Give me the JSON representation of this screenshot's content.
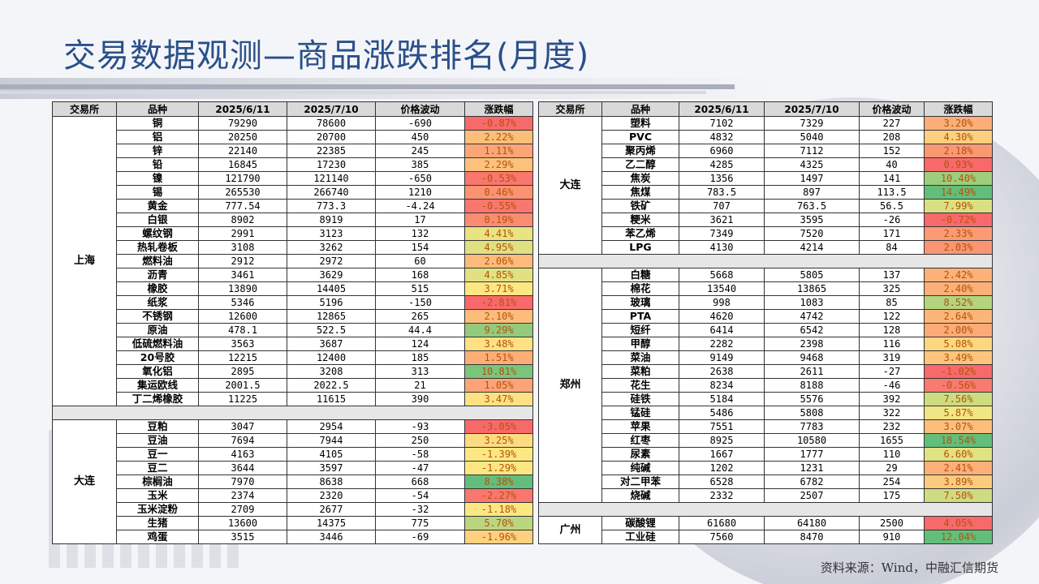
{
  "title": "交易数据观测—商品涨跌排名(月度)",
  "columns": [
    "交易所",
    "品种",
    "2025/6/11",
    "2025/7/10",
    "价格波动",
    "涨跌幅"
  ],
  "left_table": [
    {
      "exchange": "上海",
      "rows": [
        [
          "铜",
          "79290",
          "78600",
          "-690",
          "-0.87%",
          "#f8696b"
        ],
        [
          "铝",
          "20250",
          "20700",
          "450",
          "2.22%",
          "#fcbf7b"
        ],
        [
          "锌",
          "22140",
          "22385",
          "245",
          "1.11%",
          "#fca577"
        ],
        [
          "铅",
          "16845",
          "17230",
          "385",
          "2.29%",
          "#fcc17c"
        ],
        [
          "镍",
          "121790",
          "121140",
          "-650",
          "-0.53%",
          "#f9776e"
        ],
        [
          "锡",
          "265530",
          "266740",
          "1210",
          "0.46%",
          "#fb9373"
        ],
        [
          "黄金",
          "777.54",
          "773.3",
          "-4.24",
          "-0.55%",
          "#f9776e"
        ],
        [
          "白银",
          "8902",
          "8919",
          "17",
          "0.19%",
          "#fa8c72"
        ],
        [
          "螺纹钢",
          "2991",
          "3123",
          "132",
          "4.41%",
          "#e9e382"
        ],
        [
          "热轧卷板",
          "3108",
          "3262",
          "154",
          "4.95%",
          "#dfe082"
        ],
        [
          "燃料油",
          "2912",
          "2972",
          "60",
          "2.06%",
          "#fcbb7b"
        ],
        [
          "沥青",
          "3461",
          "3629",
          "168",
          "4.85%",
          "#e1e182"
        ],
        [
          "橡胶",
          "13890",
          "14405",
          "515",
          "3.71%",
          "#fde783"
        ],
        [
          "纸浆",
          "5346",
          "5196",
          "-150",
          "-2.81%",
          "#f8696b"
        ],
        [
          "不锈钢",
          "12600",
          "12865",
          "265",
          "2.10%",
          "#fcbc7b"
        ],
        [
          "原油",
          "478.1",
          "522.5",
          "44.4",
          "9.29%",
          "#93ca7d"
        ],
        [
          "低硫燃料油",
          "3563",
          "3687",
          "124",
          "3.48%",
          "#fde182"
        ],
        [
          "20号胶",
          "12215",
          "12400",
          "185",
          "1.51%",
          "#fcae78"
        ],
        [
          "氧化铝",
          "2895",
          "3208",
          "313",
          "10.81%",
          "#7bc47c"
        ],
        [
          "集运欧线",
          "2001.5",
          "2022.5",
          "21",
          "1.05%",
          "#fca477"
        ],
        [
          "丁二烯橡胶",
          "11225",
          "11615",
          "390",
          "3.47%",
          "#fde182"
        ]
      ]
    },
    {
      "exchange": "大连",
      "rows": [
        [
          "豆粕",
          "3047",
          "2954",
          "-93",
          "-3.05%",
          "#f8696b"
        ],
        [
          "豆油",
          "7694",
          "7944",
          "250",
          "3.25%",
          "#fddc81"
        ],
        [
          "豆一",
          "4163",
          "4105",
          "-58",
          "-1.39%",
          "#fde783"
        ],
        [
          "豆二",
          "3644",
          "3597",
          "-47",
          "-1.29%",
          "#fde783"
        ],
        [
          "棕榈油",
          "7970",
          "8638",
          "668",
          "8.38%",
          "#63be7b"
        ],
        [
          "玉米",
          "2374",
          "2320",
          "-54",
          "-2.27%",
          "#f9776e"
        ],
        [
          "玉米淀粉",
          "2709",
          "2677",
          "-32",
          "-1.18%",
          "#fde783"
        ],
        [
          "生猪",
          "13600",
          "14375",
          "775",
          "5.70%",
          "#bcd680"
        ],
        [
          "鸡蛋",
          "3515",
          "3446",
          "-69",
          "-1.96%",
          "#fdd17f"
        ]
      ]
    }
  ],
  "right_table": [
    {
      "exchange": "大连",
      "rows": [
        [
          "塑料",
          "7102",
          "7329",
          "227",
          "3.20%",
          "#fbae78"
        ],
        [
          "PVC",
          "4832",
          "5040",
          "208",
          "4.30%",
          "#fdd07f"
        ],
        [
          "聚丙烯",
          "6960",
          "7112",
          "152",
          "2.18%",
          "#fb9874"
        ],
        [
          "乙二醇",
          "4285",
          "4325",
          "40",
          "0.93%",
          "#f8696b"
        ],
        [
          "焦炭",
          "1356",
          "1497",
          "141",
          "10.40%",
          "#9fcd7e"
        ],
        [
          "焦煤",
          "783.5",
          "897",
          "113.5",
          "14.49%",
          "#63be7b"
        ],
        [
          "铁矿",
          "707",
          "763.5",
          "56.5",
          "7.99%",
          "#dae081"
        ],
        [
          "粳米",
          "3621",
          "3595",
          "-26",
          "-0.72%",
          "#f8696b"
        ],
        [
          "苯乙烯",
          "7349",
          "7520",
          "171",
          "2.33%",
          "#fb9b75"
        ],
        [
          "LPG",
          "4130",
          "4214",
          "84",
          "2.03%",
          "#fa9574"
        ]
      ]
    },
    {
      "exchange": "郑州",
      "rows": [
        [
          "白糖",
          "5668",
          "5805",
          "137",
          "2.42%",
          "#fcb179"
        ],
        [
          "棉花",
          "13540",
          "13865",
          "325",
          "2.40%",
          "#fcb079"
        ],
        [
          "玻璃",
          "998",
          "1083",
          "85",
          "8.52%",
          "#b5d47f"
        ],
        [
          "PTA",
          "4620",
          "4742",
          "122",
          "2.64%",
          "#fcb67a"
        ],
        [
          "短纤",
          "6414",
          "6542",
          "128",
          "2.00%",
          "#fcaa78"
        ],
        [
          "甲醇",
          "2282",
          "2398",
          "116",
          "5.08%",
          "#fdd780"
        ],
        [
          "菜油",
          "9149",
          "9468",
          "319",
          "3.49%",
          "#fcc47d"
        ],
        [
          "菜粕",
          "2638",
          "2611",
          "-27",
          "-1.02%",
          "#f8696b"
        ],
        [
          "花生",
          "8234",
          "8188",
          "-46",
          "-0.56%",
          "#f97a6e"
        ],
        [
          "硅铁",
          "5184",
          "5576",
          "392",
          "7.56%",
          "#cddc81"
        ],
        [
          "锰硅",
          "5486",
          "5808",
          "322",
          "5.87%",
          "#f0e683"
        ],
        [
          "苹果",
          "7551",
          "7783",
          "232",
          "3.07%",
          "#fcbe7c"
        ],
        [
          "红枣",
          "8925",
          "10580",
          "1655",
          "18.54%",
          "#63be7b"
        ],
        [
          "尿素",
          "1667",
          "1777",
          "110",
          "6.60%",
          "#e1e282"
        ],
        [
          "纯碱",
          "1202",
          "1231",
          "29",
          "2.41%",
          "#fcb079"
        ],
        [
          "对二甲苯",
          "6528",
          "6782",
          "254",
          "3.89%",
          "#fdcb7e"
        ],
        [
          "烧碱",
          "2332",
          "2507",
          "175",
          "7.50%",
          "#cedc81"
        ]
      ]
    },
    {
      "exchange": "广州",
      "rows": [
        [
          "碳酸锂",
          "61680",
          "64180",
          "2500",
          "4.05%",
          "#f8696b"
        ],
        [
          "工业硅",
          "7560",
          "8470",
          "910",
          "12.04%",
          "#63be7b"
        ]
      ]
    }
  ],
  "footer": "资料来源：Wind，中融汇信期货"
}
